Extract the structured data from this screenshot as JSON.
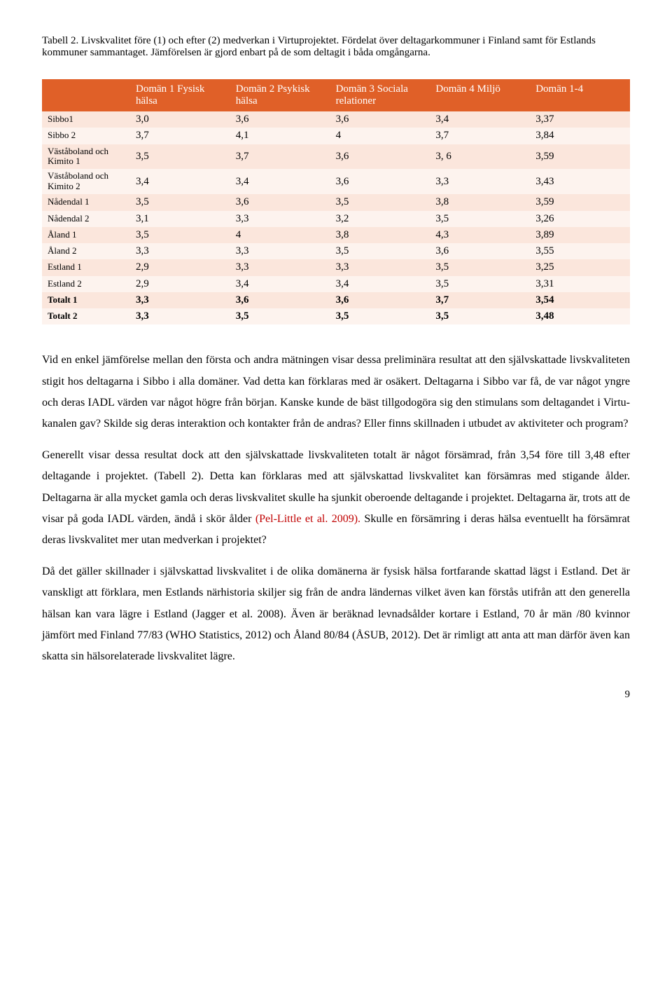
{
  "caption": "Tabell 2. Livskvalitet före (1) och efter (2) medverkan i Virtuprojektet. Fördelat över deltagarkommuner i Finland samt för Estlands kommuner sammantaget. Jämförelsen är gjord enbart på de som deltagit i båda omgångarna.",
  "table": {
    "header_bg": "#e06028",
    "row_bg_odd": "#fbe6dc",
    "row_bg_even": "#fdf3ee",
    "columns": [
      "",
      "Domän 1 Fysisk hälsa",
      "Domän 2 Psykisk hälsa",
      "Domän 3 Sociala relationer",
      "Domän 4 Miljö",
      "Domän 1-4"
    ],
    "rows": [
      {
        "bold": false,
        "cells": [
          "Sibbo1",
          "3,0",
          "3,6",
          "3,6",
          "3,4",
          "3,37"
        ]
      },
      {
        "bold": false,
        "cells": [
          "Sibbo 2",
          "3,7",
          "4,1",
          "4",
          "3,7",
          "3,84"
        ]
      },
      {
        "bold": false,
        "cells": [
          "Väståboland och Kimito 1",
          "3,5",
          "3,7",
          "3,6",
          "3, 6",
          "3,59"
        ]
      },
      {
        "bold": false,
        "cells": [
          "Väståboland och Kimito 2",
          "3,4",
          "3,4",
          "3,6",
          "3,3",
          "3,43"
        ]
      },
      {
        "bold": false,
        "cells": [
          "Nådendal 1",
          "3,5",
          "3,6",
          "3,5",
          "3,8",
          "3,59"
        ]
      },
      {
        "bold": false,
        "cells": [
          "Nådendal 2",
          "3,1",
          "3,3",
          "3,2",
          "3,5",
          "3,26"
        ]
      },
      {
        "bold": false,
        "cells": [
          "Åland 1",
          "3,5",
          "4",
          "3,8",
          "4,3",
          "3,89"
        ]
      },
      {
        "bold": false,
        "cells": [
          "Åland 2",
          "3,3",
          "3,3",
          "3,5",
          "3,6",
          "3,55"
        ]
      },
      {
        "bold": false,
        "cells": [
          "Estland 1",
          "2,9",
          "3,3",
          "3,3",
          "3,5",
          "3,25"
        ]
      },
      {
        "bold": false,
        "cells": [
          "Estland 2",
          "2,9",
          "3,4",
          "3,4",
          "3,5",
          "3,31"
        ]
      },
      {
        "bold": true,
        "cells": [
          "Totalt 1",
          "3,3",
          "3,6",
          "3,6",
          "3,7",
          "3,54"
        ]
      },
      {
        "bold": true,
        "cells": [
          "Totalt 2",
          "3,3",
          "3,5",
          "3,5",
          "3,5",
          "3,48"
        ]
      }
    ]
  },
  "para1a": "Vid en enkel jämförelse mellan den första och andra mätningen visar dessa preliminära resultat att den självskattade livskvaliteten stigit hos deltagarna i Sibbo i alla domäner. Vad detta kan förklaras med är osäkert. Deltagarna i Sibbo var få, de var något yngre och deras IADL värden var något högre från början. Kanske kunde de bäst tillgodogöra sig den stimulans som deltagandet i Virtu-kanalen gav? Skilde sig deras interaktion och kontakter från de andras? Eller finns skillnaden i utbudet av aktiviteter och program?",
  "para2a": "Generellt visar dessa resultat dock att den självskattade livskvaliteten totalt är något försämrad, från 3,54 före till 3,48 efter deltagande i projektet. (Tabell 2).  Detta kan förklaras med att självskattad livskvalitet kan försämras med stigande ålder. Deltagarna är alla mycket gamla och deras livskvalitet skulle ha sjunkit oberoende deltagande i projektet. Deltagarna är, trots att de visar på goda IADL värden, ändå i skör ålder ",
  "para2pel": "(Pel-Little et al. 2009).",
  "para2b": " Skulle en försämring i deras hälsa eventuellt ha försämrat deras livskvalitet mer utan medverkan i projektet?",
  "para3": "Då det gäller skillnader i självskattad livskvalitet i de olika domänerna är fysisk hälsa fortfarande skattad lägst i Estland. Det är vanskligt att förklara, men Estlands närhistoria skiljer sig från de andra ländernas vilket även kan förstås utifrån att den generella hälsan kan vara lägre i Estland (Jagger et al. 2008). Även är beräknad levnadsålder kortare i Estland, 70 år män /80 kvinnor jämfört med  Finland 77/83 (WHO Statistics, 2012) och Åland 80/84 (ÅSUB, 2012). Det är rimligt att anta att man därför även kan skatta sin hälsorelaterade livskvalitet lägre.",
  "pageno": "9"
}
